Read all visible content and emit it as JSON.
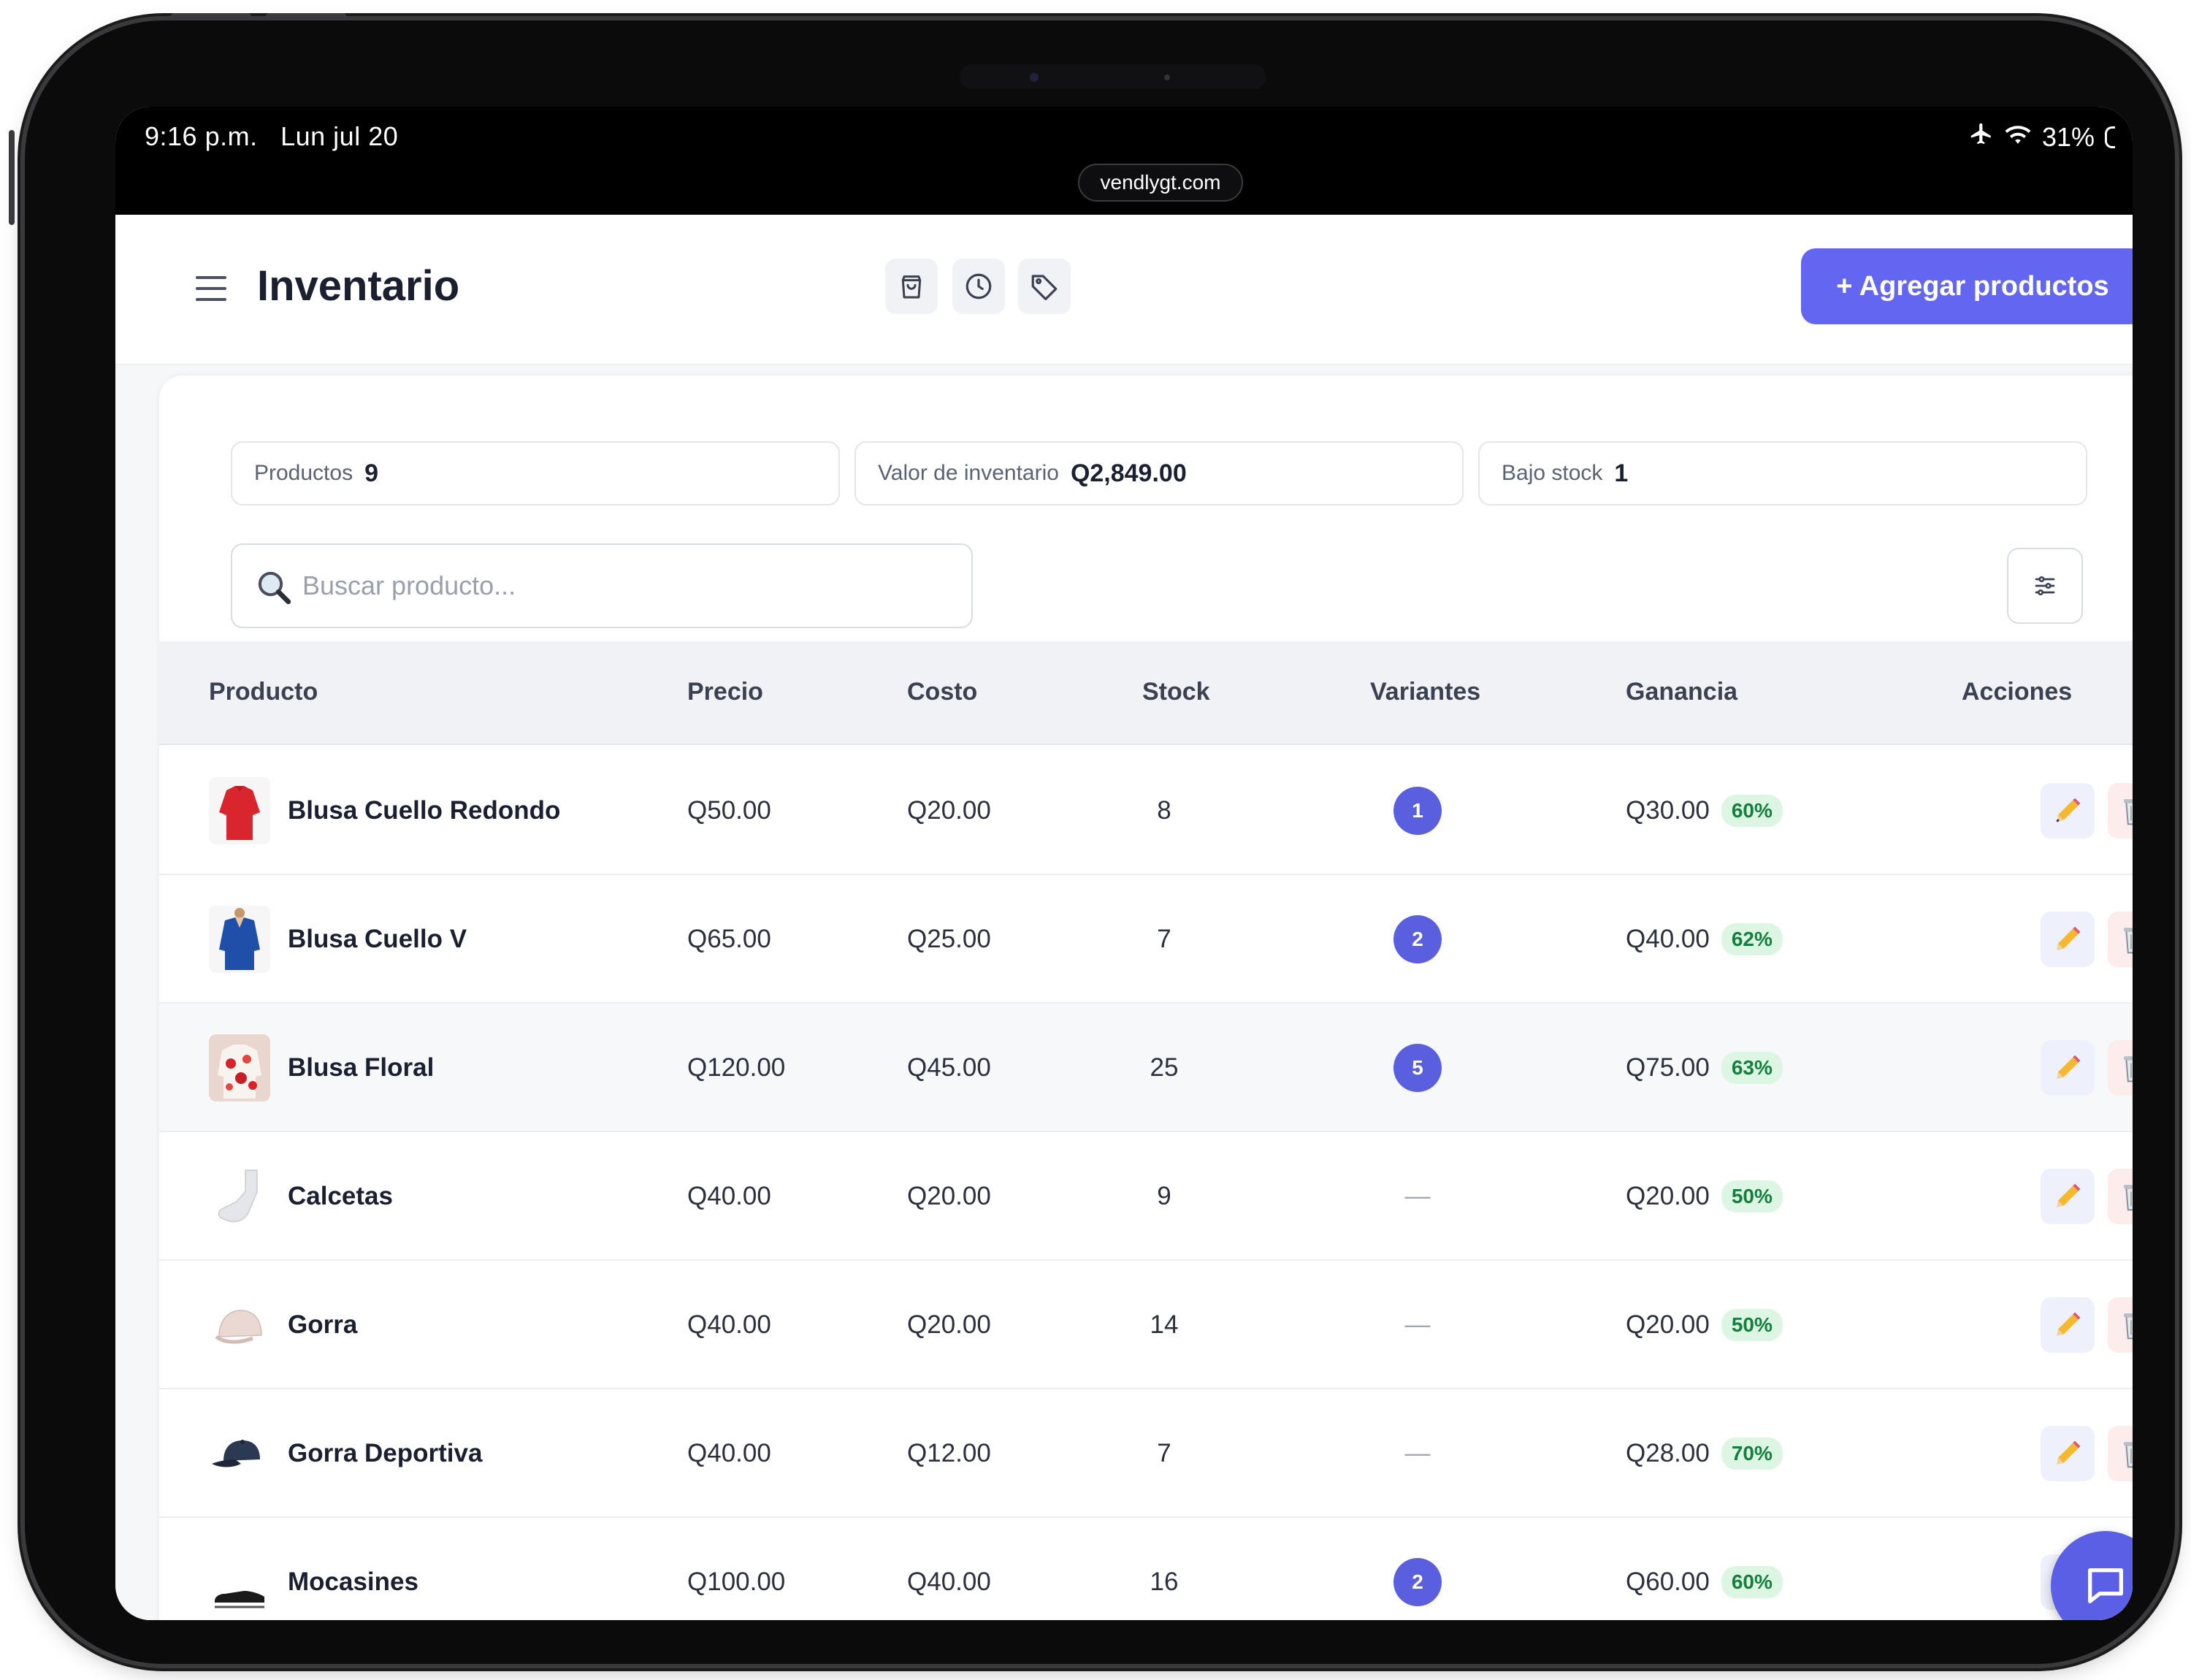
{
  "status": {
    "time": "9:16 p.m.",
    "date": "Lun jul 20",
    "battery": "31%",
    "url": "vendlygt.com"
  },
  "header": {
    "title": "Inventario",
    "add_button": "+ Agregar productos",
    "icons": [
      "shopping-bag-icon",
      "clock-icon",
      "tag-icon"
    ]
  },
  "stats": {
    "products_label": "Productos",
    "products_value": "9",
    "inventory_label": "Valor de inventario",
    "inventory_value": "Q2,849.00",
    "low_stock_label": "Bajo stock",
    "low_stock_value": "1"
  },
  "search": {
    "placeholder": "Buscar producto..."
  },
  "table": {
    "columns": {
      "product": "Producto",
      "price": "Precio",
      "cost": "Costo",
      "stock": "Stock",
      "variants": "Variantes",
      "profit": "Ganancia",
      "actions": "Acciones"
    },
    "rows": [
      {
        "name": "Blusa Cuello Redondo",
        "price": "Q50.00",
        "cost": "Q20.00",
        "stock": "8",
        "variants": "1",
        "profit": "Q30.00",
        "margin": "60%"
      },
      {
        "name": "Blusa Cuello V",
        "price": "Q65.00",
        "cost": "Q25.00",
        "stock": "7",
        "variants": "2",
        "profit": "Q40.00",
        "margin": "62%"
      },
      {
        "name": "Blusa Floral",
        "price": "Q120.00",
        "cost": "Q45.00",
        "stock": "25",
        "variants": "5",
        "profit": "Q75.00",
        "margin": "63%"
      },
      {
        "name": "Calcetas",
        "price": "Q40.00",
        "cost": "Q20.00",
        "stock": "9",
        "variants": "—",
        "profit": "Q20.00",
        "margin": "50%"
      },
      {
        "name": "Gorra",
        "price": "Q40.00",
        "cost": "Q20.00",
        "stock": "14",
        "variants": "—",
        "profit": "Q20.00",
        "margin": "50%"
      },
      {
        "name": "Gorra Deportiva",
        "price": "Q40.00",
        "cost": "Q12.00",
        "stock": "7",
        "variants": "—",
        "profit": "Q28.00",
        "margin": "70%"
      },
      {
        "name": "Mocasines",
        "price": "Q100.00",
        "cost": "Q40.00",
        "stock": "16",
        "variants": "2",
        "profit": "Q60.00",
        "margin": "60%"
      }
    ]
  },
  "colors": {
    "accent": "#6366f1",
    "badge": "#5a5fe0",
    "margin_bg": "#dcf6e3",
    "margin_text": "#15803d"
  }
}
